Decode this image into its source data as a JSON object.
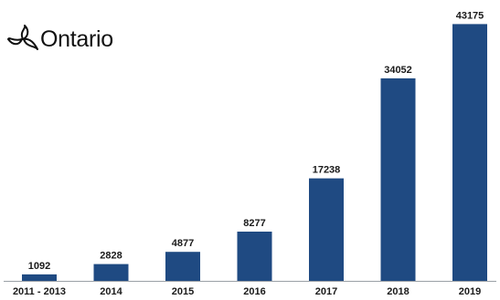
{
  "logo": {
    "text": "Ontario",
    "icon": "trillium-icon"
  },
  "colors": {
    "bar": "#1f4a82",
    "axis": "#9aa0a6",
    "text": "#1a1a1a"
  },
  "chart_data": {
    "type": "bar",
    "categories": [
      "2011 - 2013",
      "2014",
      "2015",
      "2016",
      "2017",
      "2018",
      "2019"
    ],
    "values": [
      1092,
      2828,
      4877,
      8277,
      17238,
      34052,
      43175
    ],
    "title": "",
    "xlabel": "",
    "ylabel": "",
    "ylim": [
      0,
      46000
    ],
    "grid": false,
    "legend": "none",
    "data_labels": true
  }
}
